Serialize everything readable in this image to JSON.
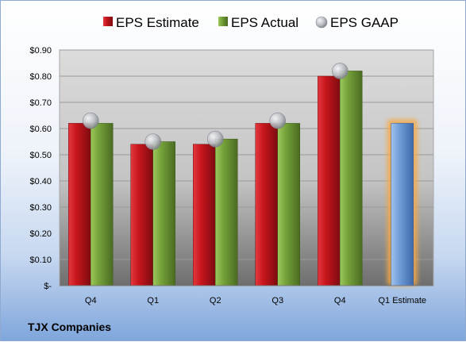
{
  "company": "TJX Companies",
  "colors": {
    "estimate": "#c8161d",
    "actual": "#76a33a",
    "gaap": "#b9bcc2",
    "forecast": "#6d9bd6",
    "forecast_glow": "#f5a947"
  },
  "chart_data": {
    "type": "bar",
    "title": "",
    "xlabel": "",
    "ylabel": "",
    "ylim": [
      0,
      0.9
    ],
    "y_tick_labels": [
      "$-",
      "$0.10",
      "$0.20",
      "$0.30",
      "$0.40",
      "$0.50",
      "$0.60",
      "$0.70",
      "$0.80",
      "$0.90"
    ],
    "categories": [
      "Q4",
      "Q1",
      "Q2",
      "Q3",
      "Q4",
      "Q1 Estimate"
    ],
    "legend_position": "top",
    "grid": true,
    "series": [
      {
        "name": "EPS Estimate",
        "type": "bar",
        "values": [
          0.62,
          0.54,
          0.54,
          0.62,
          0.8,
          null
        ]
      },
      {
        "name": "EPS Actual",
        "type": "bar",
        "values": [
          0.62,
          0.55,
          0.56,
          0.62,
          0.82,
          null
        ]
      },
      {
        "name": "EPS GAAP",
        "type": "scatter",
        "values": [
          0.63,
          0.55,
          0.56,
          0.63,
          0.82,
          null
        ]
      }
    ],
    "forecast": {
      "category": "Q1 Estimate",
      "value": 0.62
    }
  }
}
